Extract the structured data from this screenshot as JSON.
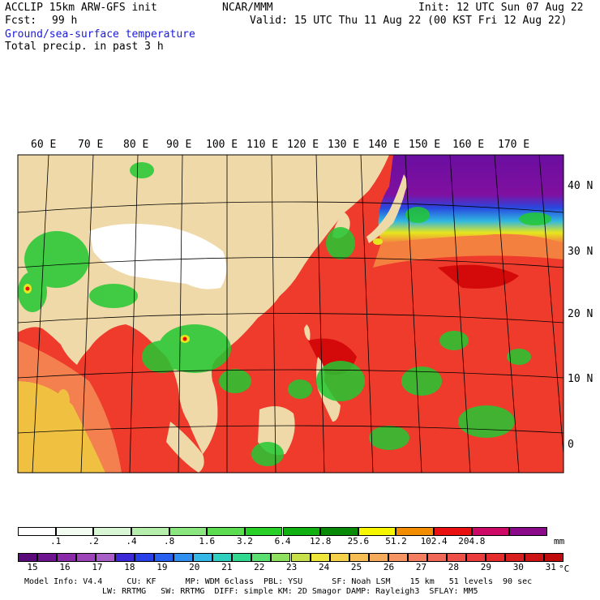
{
  "header": {
    "model": "ACCLIP 15km ARW-GFS init",
    "forecast_label": "Fcst:",
    "forecast_value": "99 h",
    "center": "NCAR/MMM",
    "init": "Init: 12 UTC Sun 07 Aug 22",
    "valid": "Valid: 15 UTC Thu 11 Aug 22 (00 KST Fri 12 Aug 22)",
    "field1": "Ground/sea-surface temperature",
    "field2": "Total precip. in past 3 h"
  },
  "map": {
    "lon_labels": [
      "60 E",
      "70 E",
      "80 E",
      "90 E",
      "100 E",
      "110 E",
      "120 E",
      "130 E",
      "140 E",
      "150 E",
      "160 E",
      "170 E"
    ],
    "lat_labels": [
      "40 N",
      "30 N",
      "20 N",
      "10 N",
      "0"
    ],
    "colors": {
      "land": "#f0d9a8",
      "snow": "#ffffff",
      "sea_warm": "#ee3b2c",
      "sea_hot": "#d40a0a",
      "sea_mid": "#f4804f",
      "sea_cool": "#f0c040",
      "cold_yellow": "#e6e61e",
      "cold_blue": "#2050e0",
      "cold_purple": "#6a0ea0",
      "precip": "#22c832"
    }
  },
  "precip_scale": {
    "labels": [
      ".1",
      ".2",
      ".4",
      ".8",
      "1.6",
      "3.2",
      "6.4",
      "12.8",
      "25.6",
      "51.2",
      "102.4",
      "204.8"
    ],
    "unit": "mm",
    "colors": [
      "#ffffff",
      "#f2fcf0",
      "#d8f6d4",
      "#b4eeaa",
      "#8ce680",
      "#5cdc50",
      "#28d028",
      "#10b010",
      "#088a08",
      "#f6f600",
      "#f28c00",
      "#e81010",
      "#cc0a66",
      "#8a0a8a"
    ]
  },
  "temp_scale": {
    "labels": [
      "15",
      "16",
      "17",
      "18",
      "19",
      "20",
      "21",
      "22",
      "23",
      "24",
      "25",
      "26",
      "27",
      "28",
      "29",
      "30",
      "31"
    ],
    "unit": "°C",
    "colors": [
      "#5a0a7a",
      "#6e1490",
      "#8a2aa8",
      "#9c44b8",
      "#a860c8",
      "#3c2ad8",
      "#2840ea",
      "#2860f0",
      "#3090f2",
      "#34b8e8",
      "#2ed0c0",
      "#30d890",
      "#5ae070",
      "#90e060",
      "#c8e04a",
      "#eee63a",
      "#f6d24a",
      "#f6be54",
      "#f6aa5c",
      "#f69464",
      "#f47e60",
      "#f26858",
      "#ee5048",
      "#ea3c3c",
      "#e42c2c",
      "#d81e1e",
      "#cc1414",
      "#c00c0c"
    ]
  },
  "footer": {
    "line1": "Model Info: V4.4     CU: KF      MP: WDM 6class  PBL: YSU      SF: Noah LSM    15 km   51 levels  90 sec",
    "line2": "LW: RRTMG   SW: RRTMG  DIFF: simple KM: 2D Smagor DAMP: Rayleigh3  SFLAY: MM5"
  }
}
